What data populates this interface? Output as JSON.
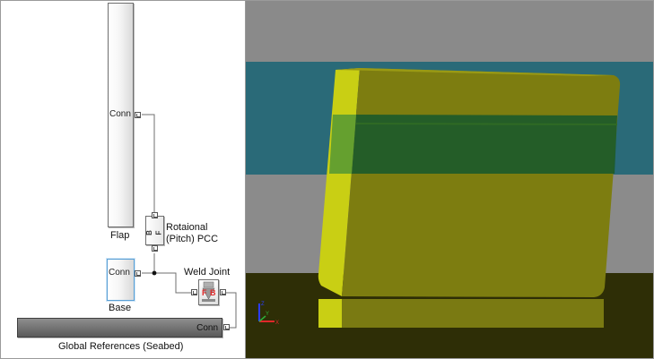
{
  "diagram": {
    "flap_block": {
      "port_text": "Conn",
      "name": "Flap"
    },
    "base_block": {
      "port_text": "Conn",
      "name": "Base"
    },
    "global_block": {
      "port_text": "Conn",
      "name": "Global References (Seabed)"
    },
    "revolute_joint": {
      "name_line1": "Rotaional",
      "name_line2": "(Pitch) PCC",
      "port_b": "B",
      "port_f": "F"
    },
    "weld_joint": {
      "name": "Weld Joint",
      "port_f": "F",
      "port_b": "B"
    }
  },
  "viewer": {
    "colors": {
      "sky": "#8a8a8a",
      "water": "#2a6a78",
      "seabed": "#2e2e06",
      "flap_front": "#7d7d10",
      "flap_side": "#c9cf14",
      "flap_band": "#1c5a2a",
      "base": "#7a7a12"
    },
    "triad": {
      "z": "Z",
      "x": "X",
      "y": "Y"
    }
  },
  "colors": {
    "wire": "#6f6f6f",
    "accent_red": "#e0282a",
    "selected": "#5aa0d6"
  }
}
